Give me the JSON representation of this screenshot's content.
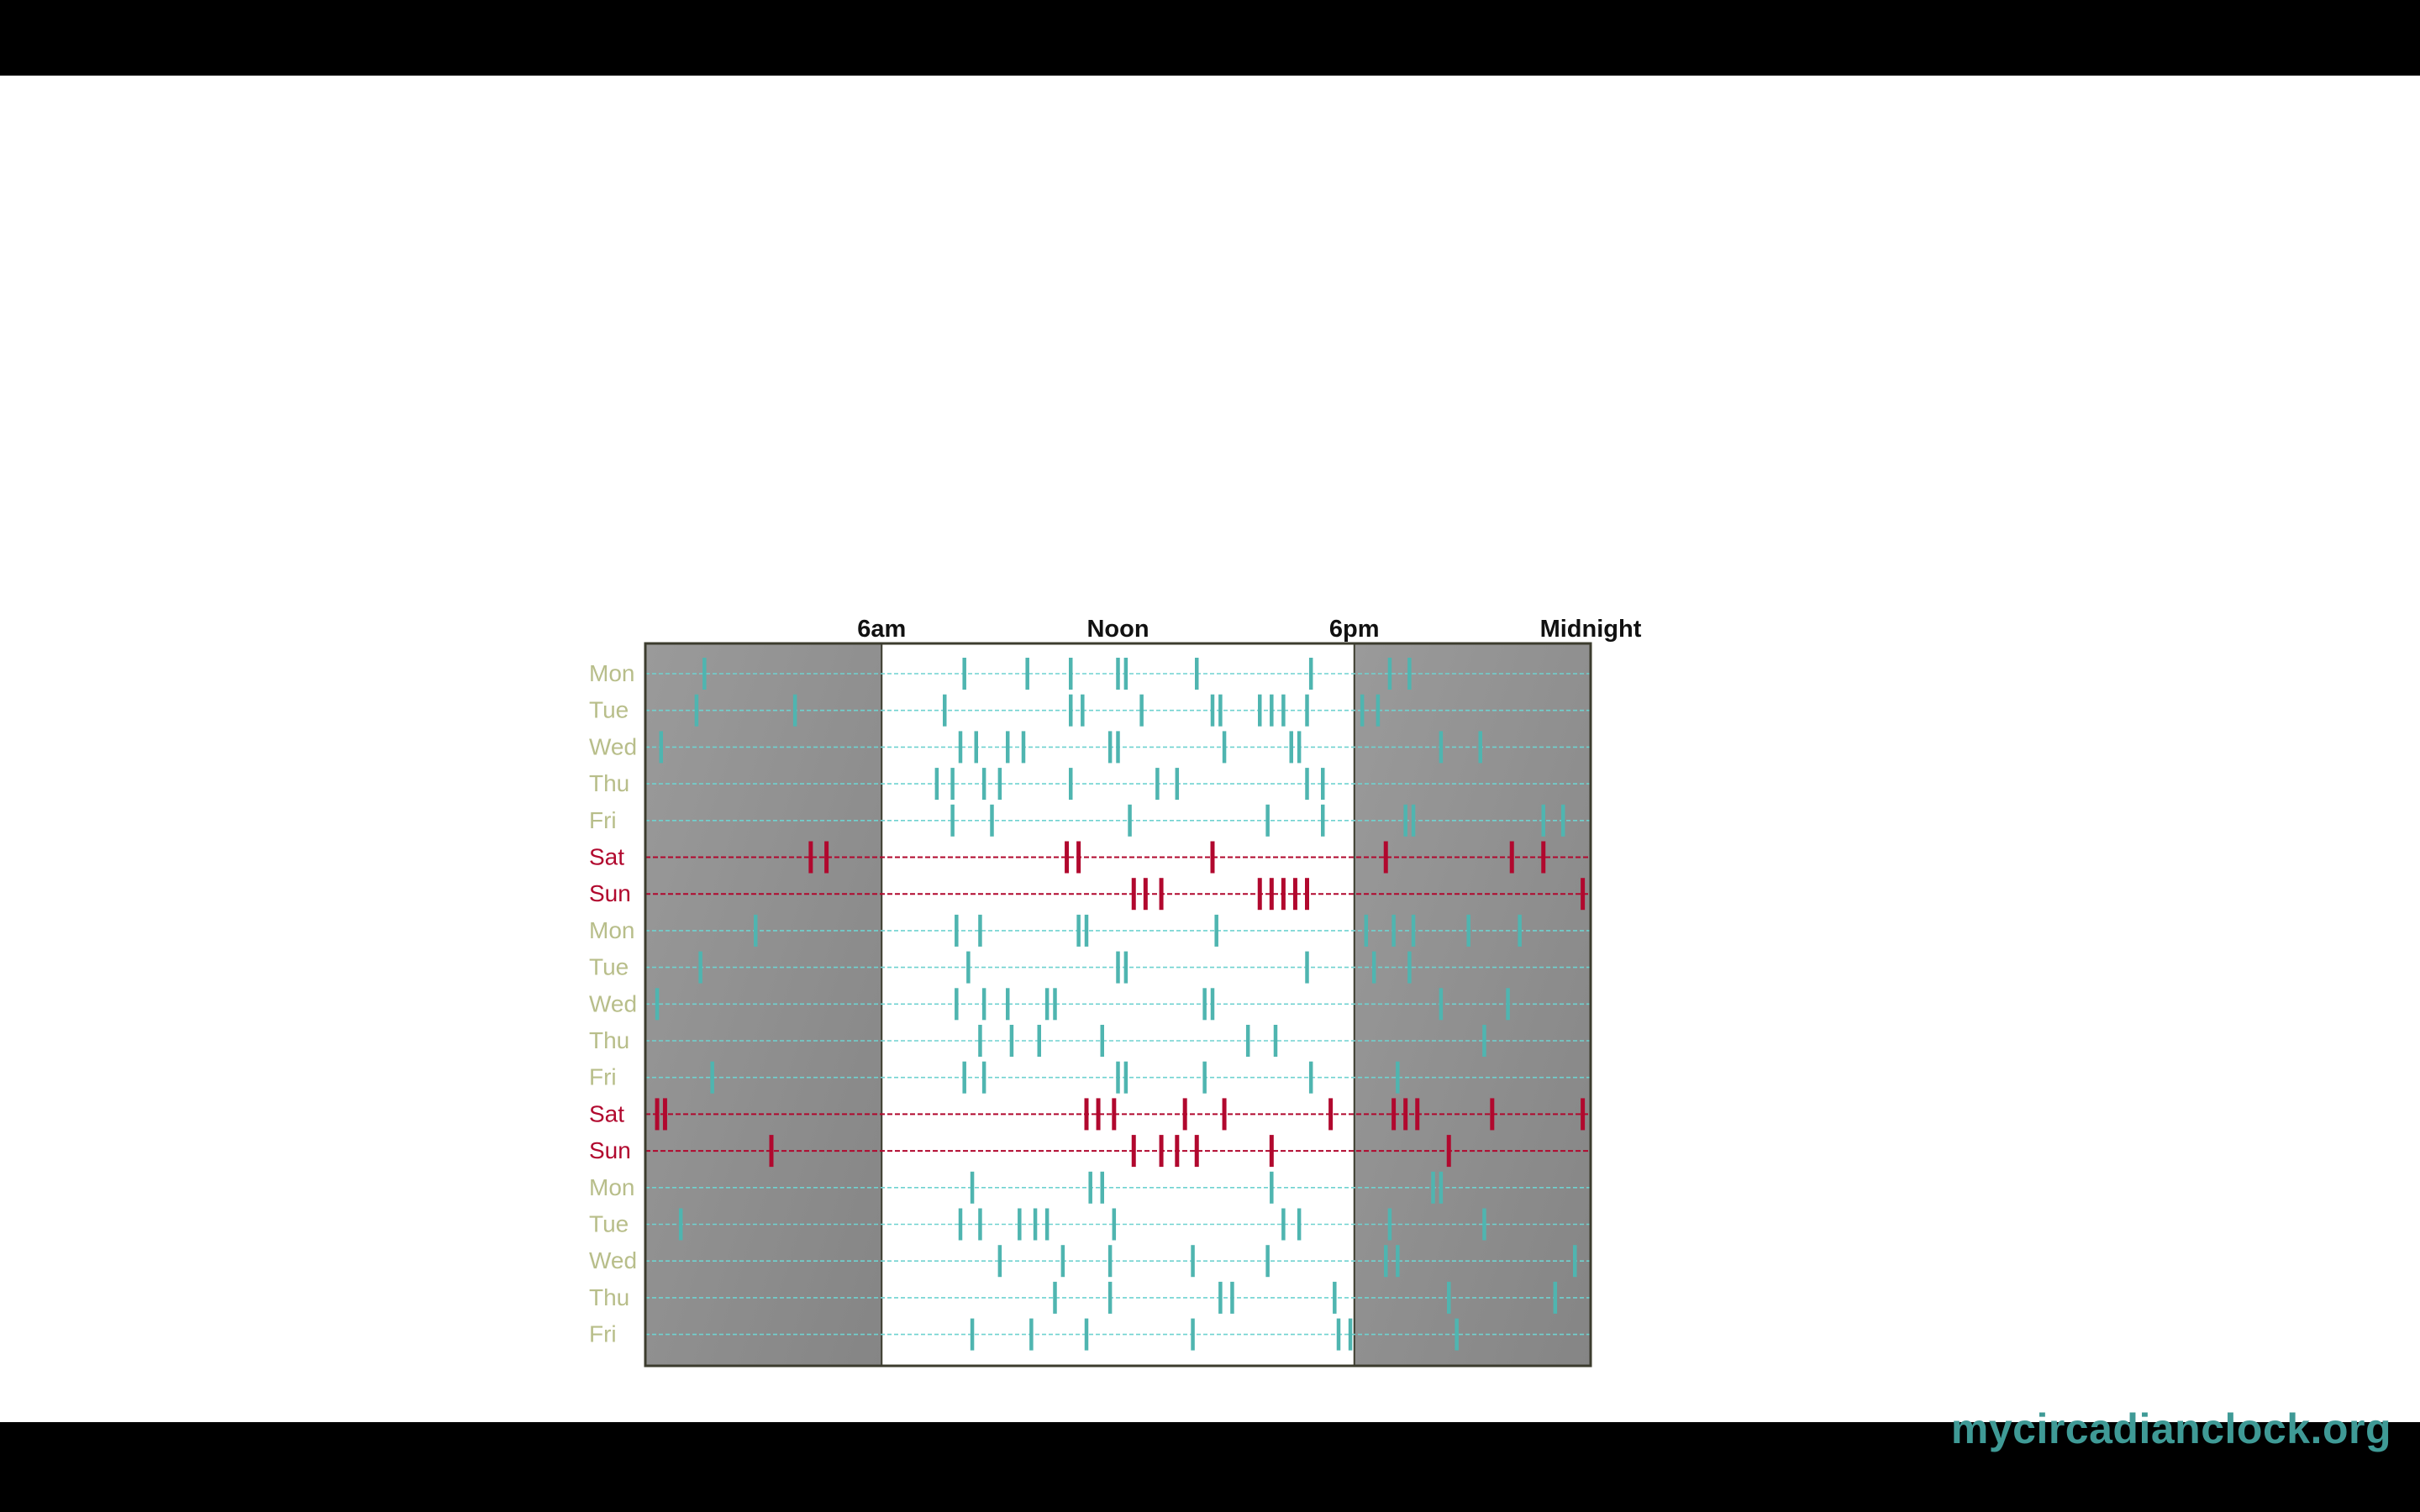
{
  "chart_data": {
    "type": "scatter",
    "title": "",
    "xlabel": "",
    "ylabel": "",
    "x_unit": "hour of day",
    "xlim": [
      0,
      24
    ],
    "x_ticks": [
      {
        "hour": 6,
        "label": "6am"
      },
      {
        "hour": 12,
        "label": "Noon"
      },
      {
        "hour": 18,
        "label": "6pm"
      },
      {
        "hour": 24,
        "label": "Midnight"
      }
    ],
    "night_shading": [
      [
        0,
        6
      ],
      [
        18,
        24
      ]
    ],
    "rows": [
      {
        "label": "Mon",
        "weekend": false,
        "times": [
          1.5,
          8.1,
          9.7,
          10.8,
          12.0,
          12.2,
          14.0,
          16.9,
          18.9,
          19.4
        ]
      },
      {
        "label": "Tue",
        "weekend": false,
        "times": [
          1.3,
          3.8,
          7.6,
          10.8,
          11.1,
          12.6,
          14.4,
          14.6,
          15.6,
          15.9,
          16.2,
          16.8,
          18.2,
          18.6
        ]
      },
      {
        "label": "Wed",
        "weekend": false,
        "times": [
          0.4,
          8.0,
          8.4,
          9.2,
          9.6,
          11.8,
          12.0,
          14.7,
          16.4,
          16.6,
          20.2,
          21.2
        ]
      },
      {
        "label": "Thu",
        "weekend": false,
        "times": [
          7.4,
          7.8,
          8.6,
          9.0,
          10.8,
          13.0,
          13.5,
          16.8,
          17.2
        ]
      },
      {
        "label": "Fri",
        "weekend": false,
        "times": [
          7.8,
          8.8,
          12.3,
          15.8,
          17.2,
          19.3,
          19.5,
          22.8,
          23.3
        ]
      },
      {
        "label": "Sat",
        "weekend": true,
        "times": [
          4.2,
          4.6,
          10.7,
          11.0,
          14.4,
          18.8,
          22.0,
          22.8
        ]
      },
      {
        "label": "Sun",
        "weekend": true,
        "times": [
          12.4,
          12.7,
          13.1,
          15.6,
          15.9,
          16.2,
          16.5,
          16.8,
          23.8
        ]
      },
      {
        "label": "Mon",
        "weekend": false,
        "times": [
          2.8,
          7.9,
          8.5,
          11.0,
          11.2,
          14.5,
          18.3,
          19.0,
          19.5,
          20.9,
          22.2
        ]
      },
      {
        "label": "Tue",
        "weekend": false,
        "times": [
          1.4,
          8.2,
          12.0,
          12.2,
          16.8,
          18.5,
          19.4
        ]
      },
      {
        "label": "Wed",
        "weekend": false,
        "times": [
          0.3,
          7.9,
          8.6,
          9.2,
          10.2,
          10.4,
          14.2,
          14.4,
          20.2,
          21.9
        ]
      },
      {
        "label": "Thu",
        "weekend": false,
        "times": [
          8.5,
          9.3,
          10.0,
          11.6,
          15.3,
          16.0,
          21.3
        ]
      },
      {
        "label": "Fri",
        "weekend": false,
        "times": [
          1.7,
          8.1,
          8.6,
          12.0,
          12.2,
          14.2,
          16.9,
          19.1
        ]
      },
      {
        "label": "Sat",
        "weekend": true,
        "times": [
          0.3,
          0.5,
          11.2,
          11.5,
          11.9,
          13.7,
          14.7,
          17.4,
          19.0,
          19.3,
          19.6,
          21.5,
          23.8
        ]
      },
      {
        "label": "Sun",
        "weekend": true,
        "times": [
          3.2,
          12.4,
          13.1,
          13.5,
          14.0,
          15.9,
          20.4
        ]
      },
      {
        "label": "Mon",
        "weekend": false,
        "times": [
          8.3,
          11.3,
          11.6,
          15.9,
          20.0,
          20.2
        ]
      },
      {
        "label": "Tue",
        "weekend": false,
        "times": [
          0.9,
          8.0,
          8.5,
          9.5,
          9.9,
          10.2,
          11.9,
          16.2,
          16.6,
          18.9,
          21.3
        ]
      },
      {
        "label": "Wed",
        "weekend": false,
        "times": [
          9.0,
          10.6,
          11.8,
          13.9,
          15.8,
          18.8,
          19.1,
          23.6
        ]
      },
      {
        "label": "Thu",
        "weekend": false,
        "times": [
          10.4,
          11.8,
          14.6,
          14.9,
          17.5,
          20.4,
          23.1
        ]
      },
      {
        "label": "Fri",
        "weekend": false,
        "times": [
          8.3,
          9.8,
          11.2,
          13.9,
          17.6,
          17.9,
          20.6
        ]
      }
    ]
  },
  "colors": {
    "weekday_label": "#b8be8a",
    "weekend_label": "#b1082e",
    "weekday_mark": "#4fb5b0",
    "weekend_mark": "#b1082e",
    "weekday_line": "#6fd2d0",
    "night_fill": "#858585",
    "day_fill": "#ffffff",
    "frame": "#3c3c2e"
  },
  "brand": "mycircadianclock.org"
}
